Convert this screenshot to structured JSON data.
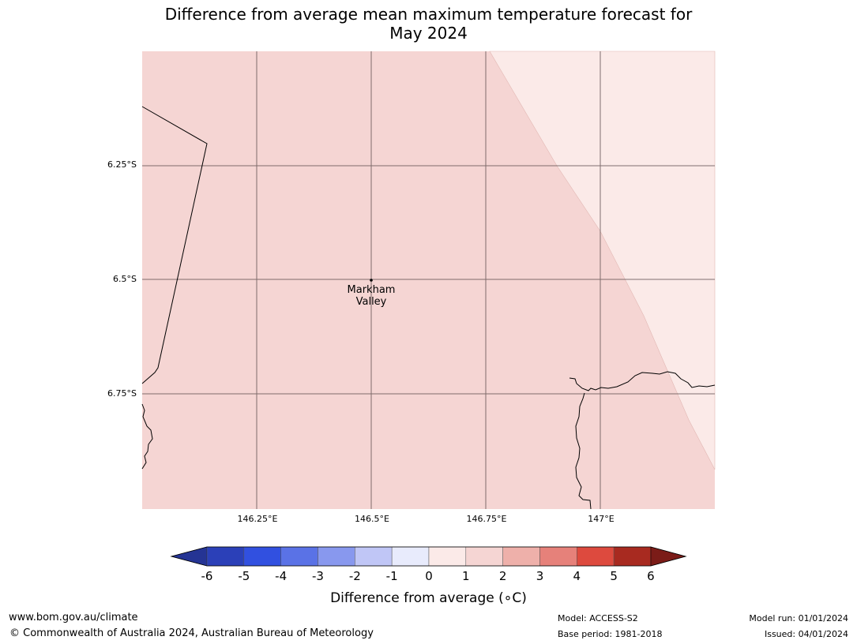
{
  "title_line1": "Difference from average mean maximum temperature forecast for",
  "title_line2": "May 2024",
  "map": {
    "lat_labels": [
      "6.25°S",
      "6.5°S",
      "6.75°S"
    ],
    "lon_labels": [
      "146.25°E",
      "146.5°E",
      "146.75°E",
      "147°E"
    ],
    "location": {
      "name_line1": "Markham",
      "name_line2": "Valley",
      "lat": -6.5,
      "lon": 146.5,
      "marker": "dot-icon"
    },
    "regions": [
      {
        "category": "1 to 2",
        "color": "#f5d5d3"
      },
      {
        "category": "0 to 1",
        "color": "#fbeae8"
      }
    ]
  },
  "colorbar": {
    "ticks": [
      "-6",
      "-5",
      "-4",
      "-3",
      "-2",
      "-1",
      "0",
      "1",
      "2",
      "3",
      "4",
      "5",
      "6"
    ],
    "colors": [
      "#253494",
      "#2b40b8",
      "#3150e0",
      "#5a72e6",
      "#8898ee",
      "#c0c6f6",
      "#e8ebfc",
      "#fbeae8",
      "#f5d5d3",
      "#eeb0aa",
      "#e6817a",
      "#dd4a3e",
      "#a82a20",
      "#7b1c18"
    ],
    "label": "Difference from average (∘C)"
  },
  "footer": {
    "website": "www.bom.gov.au/climate",
    "copyright": "© Commonwealth of Australia 2024, Australian Bureau of Meteorology",
    "model": "Model: ACCESS-S2",
    "base_period": "Base period: 1981-2018",
    "model_run": "Model run: 01/01/2024",
    "issued": "Issued: 04/01/2024"
  }
}
